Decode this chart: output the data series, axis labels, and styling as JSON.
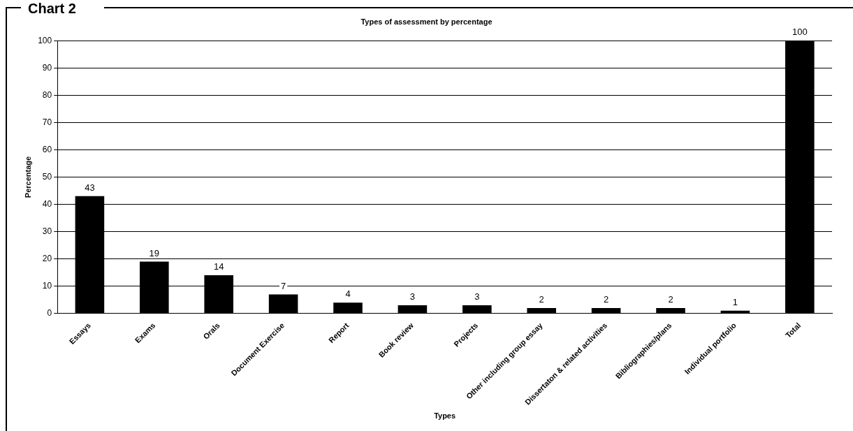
{
  "chart_data": {
    "type": "bar",
    "title": "Types of assessment by percentage",
    "xlabel": "Types",
    "ylabel": "Percentage",
    "annotations": [
      "Chart 2"
    ],
    "categories": [
      "Essays",
      "Exams",
      "Orals",
      "Document Exercise",
      "Report",
      "Book review",
      "Projects",
      "Other including group essay",
      "Dissertaton & related activities",
      "Bibliographies/plans",
      "Individual portfolio",
      "Total"
    ],
    "values": [
      43,
      19,
      14,
      7,
      4,
      3,
      3,
      2,
      2,
      2,
      1,
      100
    ],
    "color": "#000000",
    "ylim": [
      0,
      100
    ],
    "yticks": [
      0,
      10,
      20,
      30,
      40,
      50,
      60,
      70,
      80,
      90,
      100
    ],
    "grid": "y",
    "data_labels": true,
    "legend": false
  }
}
